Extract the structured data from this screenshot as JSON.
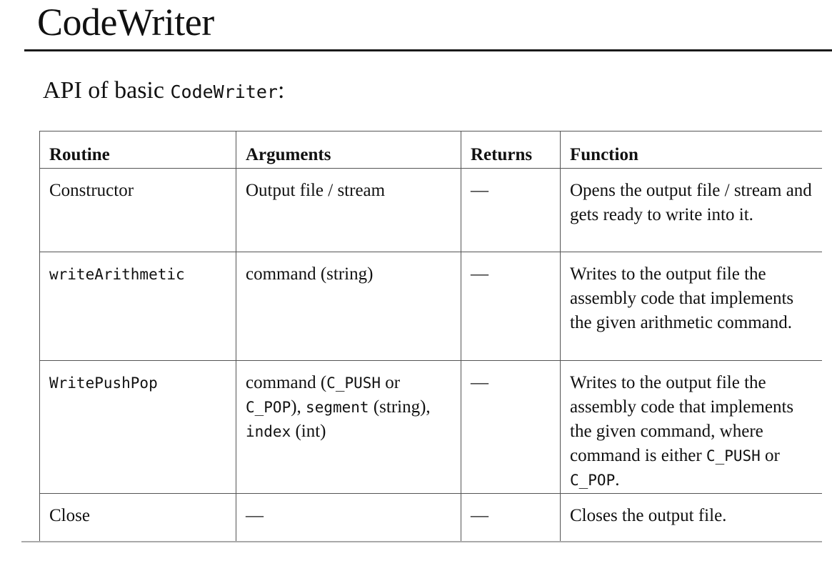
{
  "title": "CodeWriter",
  "subtitle": {
    "prefix": "API of basic ",
    "code": "CodeWriter",
    "suffix": ":"
  },
  "table": {
    "headers": [
      "Routine",
      "Arguments",
      "Returns",
      "Function"
    ],
    "rows": [
      {
        "routine": "Constructor",
        "arguments": "Output file / stream",
        "returns": "—",
        "function": "Opens the output file / stream and gets ready to write into it."
      },
      {
        "routine": "writeArithmetic",
        "arguments": "command (string)",
        "returns": "—",
        "function": "Writes to the output file the assembly code that implements the given arithmetic command."
      },
      {
        "routine": "WritePushPop",
        "arguments": {
          "t1": "command (",
          "c1": "C_PUSH",
          "t2": " or ",
          "c2": "C_POP",
          "t3": "), ",
          "c3": "segment",
          "t4": " (string), ",
          "c4": "index",
          "t5": " (int)"
        },
        "returns": "—",
        "function": {
          "t1": "Writes to the output file the assembly code that implements the given command, where command is either ",
          "c1": "C_PUSH",
          "t2": " or ",
          "c2": "C_POP",
          "t3": "."
        }
      },
      {
        "routine": "Close",
        "arguments": "—",
        "returns": "—",
        "function": "Closes the output file."
      }
    ]
  }
}
